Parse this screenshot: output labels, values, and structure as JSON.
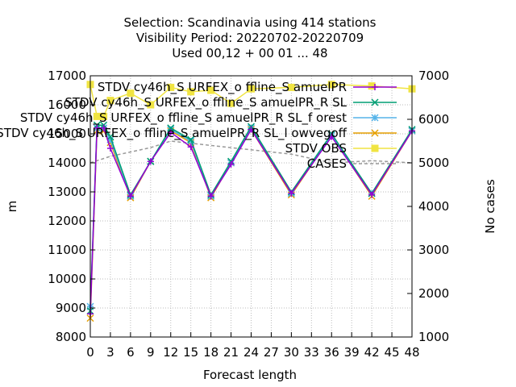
{
  "chart_data": {
    "type": "line",
    "title_lines": [
      "Selection: Scandinavia using   414 stations",
      "Visibility   Period: 20220702-20220709",
      "Used  00,12 + 00 01 ... 48"
    ],
    "xlabel": "Forecast length",
    "ylabel": "m",
    "y2label": "No cases",
    "x_ticks": [
      0,
      3,
      6,
      9,
      12,
      15,
      18,
      21,
      24,
      27,
      30,
      33,
      36,
      39,
      42,
      45,
      48
    ],
    "y_ticks": [
      8000,
      9000,
      10000,
      11000,
      12000,
      13000,
      14000,
      15000,
      16000,
      17000
    ],
    "y2_ticks": [
      1000,
      2000,
      3000,
      4000,
      5000,
      6000,
      7000
    ],
    "xlim": [
      0,
      48
    ],
    "ylim": [
      8000,
      17000
    ],
    "y2lim": [
      1000,
      7000
    ],
    "grid": true,
    "legend_position": "top-right",
    "x": [
      0,
      1,
      2,
      3,
      6,
      9,
      12,
      15,
      18,
      21,
      24,
      30,
      36,
      42,
      48
    ],
    "series": [
      {
        "name": "STDV cy46h_S URFEX_o ffline_S amuelPR",
        "color": "#9400d3",
        "marker": "plus",
        "axis": "y",
        "values": [
          8800,
          15200,
          15200,
          14500,
          12850,
          14050,
          15050,
          14550,
          12850,
          13950,
          15150,
          12950,
          14900,
          12900,
          15100
        ]
      },
      {
        "name": "STDV cy46h_S URFEX_o ffline_S amuelPR_R SL",
        "color": "#009e73",
        "marker": "x",
        "axis": "y",
        "values": [
          8900,
          15300,
          15300,
          14900,
          12900,
          14050,
          15200,
          14800,
          12900,
          14050,
          15250,
          13000,
          15000,
          12950,
          15150
        ]
      },
      {
        "name": "STDV cy46h_S URFEX_o ffline_S amuelPR_R SL_f orest",
        "color": "#56b4e9",
        "marker": "star",
        "axis": "y",
        "values": [
          9050,
          15200,
          15200,
          14800,
          12850,
          14050,
          15150,
          14750,
          12850,
          14000,
          15200,
          12950,
          14950,
          12950,
          15100
        ]
      },
      {
        "name": "STDV cy46h_S URFEX_o ffline_S amuelPR_R SL_l owvegoff",
        "color": "#e69f00",
        "marker": "x",
        "axis": "y",
        "values": [
          8650,
          15100,
          15100,
          14700,
          12800,
          14050,
          15100,
          14700,
          12800,
          14000,
          15150,
          12900,
          14950,
          12850,
          15100
        ]
      },
      {
        "name": "STDV OBS",
        "color": "#f0e442",
        "marker": "square",
        "axis": "y",
        "values": [
          16700,
          15600,
          15600,
          16150,
          16400,
          16000,
          16600,
          16450,
          16500,
          16050,
          16550,
          16600,
          16700,
          16650,
          16550
        ]
      },
      {
        "name": "CASES",
        "color": "#999999",
        "marker": "none",
        "dashed": true,
        "axis": "y2",
        "values": [
          5000,
          5050,
          5100,
          5150,
          5250,
          5350,
          5500,
          5450,
          5400,
          5350,
          5300,
          5200,
          5000,
          5050,
          5000
        ]
      }
    ],
    "legend_entries": [
      "STDV cy46h_S URFEX_o ffline_S amuelPR",
      "STDV cy46h_S URFEX_o ffline_S amuelPR_R SL",
      "STDV cy46h_S URFEX_o ffline_S amuelPR_R SL_f orest",
      "STDV cy46h_S URFEX_o ffline_S amuelPR_R SL_l owvegoff",
      "STDV OBS",
      "CASES"
    ]
  }
}
